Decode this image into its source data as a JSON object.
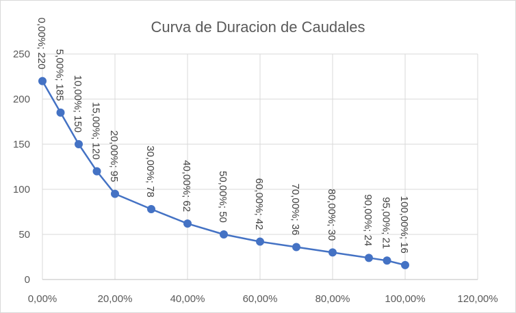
{
  "chart_data": {
    "type": "line",
    "title": "Curva de Duracion de Caudales",
    "xlabel": "",
    "ylabel": "",
    "x": [
      0,
      5,
      10,
      15,
      20,
      30,
      40,
      50,
      60,
      70,
      80,
      90,
      95,
      100
    ],
    "series": [
      {
        "values": [
          220,
          185,
          150,
          120,
          95,
          78,
          62,
          50,
          42,
          36,
          30,
          24,
          21,
          16
        ]
      }
    ],
    "data_labels": [
      "0,00%; 220",
      "5,00%; 185",
      "10,00%; 150",
      "15,00%; 120",
      "20,00%; 95",
      "30,00%; 78",
      "40,00%; 62",
      "50,00%; 50",
      "60,00%; 42",
      "70,00%; 36",
      "80,00%; 30",
      "90,00%; 24",
      "95,00%; 21",
      "100,00%; 16"
    ],
    "xlim": [
      0,
      120
    ],
    "ylim": [
      0,
      250
    ],
    "x_ticks": [
      0,
      20,
      40,
      60,
      80,
      100,
      120
    ],
    "x_tick_labels": [
      "0,00%",
      "20,00%",
      "40,00%",
      "60,00%",
      "80,00%",
      "100,00%",
      "120,00%"
    ],
    "y_ticks": [
      0,
      50,
      100,
      150,
      200,
      250
    ],
    "y_tick_labels": [
      "0",
      "50",
      "100",
      "150",
      "200",
      "250"
    ],
    "grid": true,
    "legend": "none",
    "colors": {
      "series": "#4472c4",
      "grid": "#d9d9d9",
      "text": "#595959"
    }
  }
}
